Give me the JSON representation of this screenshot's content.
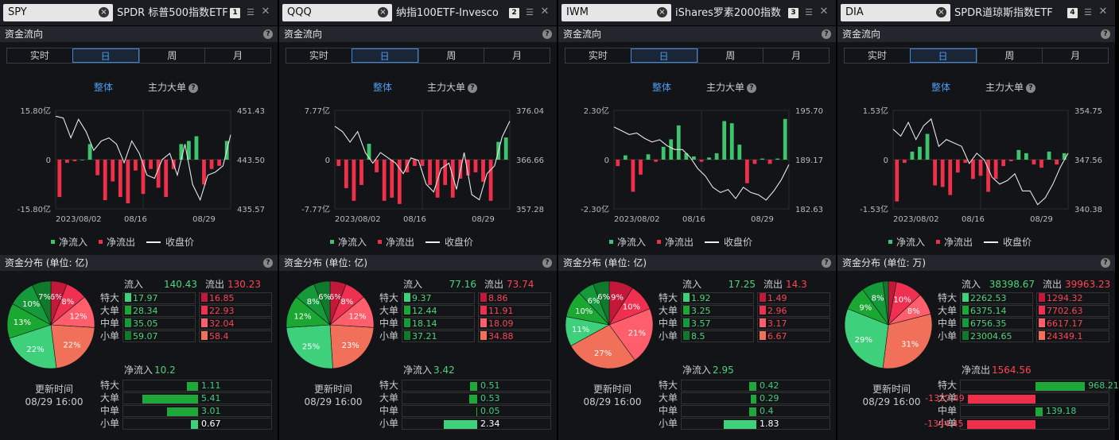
{
  "ui": {
    "section_flow": "资金流向",
    "section_dist_prefix": "资金分布 (单位: ",
    "section_dist_suffix": ")",
    "periods": [
      "实时",
      "日",
      "周",
      "月"
    ],
    "active_period": 1,
    "mode_overall": "整体",
    "mode_main": "主力大单",
    "legend_in": "净流入",
    "legend_out": "净流出",
    "legend_close": "收盘价",
    "inflow_label": "流入",
    "outflow_label": "流出",
    "size_labels": [
      "特大",
      "大单",
      "中单",
      "小单"
    ],
    "update_label": "更新时间",
    "update_time": "08/29 16:00",
    "help": "?",
    "colors": {
      "up": "#3ec46d",
      "down": "#f0304a",
      "pie": [
        "#c2183a",
        "#f03050",
        "#ff5e6c",
        "#f0705a",
        "#3ed07a",
        "#1aa832",
        "#149a3a",
        "#0f7a2c"
      ]
    }
  },
  "panels": [
    {
      "symbol": "SPY",
      "title": "SPDR 标普500指数ETF",
      "num": "1",
      "unit": "亿",
      "chart_data": {
        "type": "bar",
        "dates": [
          "2023/08/02",
          "08/16",
          "08/29"
        ],
        "date_ticks": [
          0,
          10,
          19
        ],
        "y_left": [
          "15.80亿",
          "0",
          "-15.80亿"
        ],
        "y_right": [
          "451.43",
          "443.50",
          "435.57"
        ],
        "y_lim": [
          -15.8,
          15.8
        ],
        "price_lim": [
          435.57,
          451.43
        ],
        "flows": [
          -12,
          -1,
          -0.5,
          0,
          5,
          -5,
          -13,
          -7,
          -12,
          -14,
          -3.5,
          -11,
          -3,
          -9,
          -12,
          -3,
          5,
          6,
          7.5,
          -8,
          -3,
          -2,
          6
        ],
        "close": [
          450.5,
          450.2,
          447,
          450,
          448,
          445,
          446.5,
          447,
          446,
          443,
          446.5,
          444.5,
          441,
          440.5,
          443.5,
          444.5,
          441,
          446,
          439.5,
          437,
          441,
          441.5,
          442.5,
          447.5
        ]
      },
      "inflow": "140.43",
      "outflow": "130.23",
      "in_values": [
        "17.97",
        "28.34",
        "35.05",
        "59.07"
      ],
      "out_values": [
        "16.85",
        "22.93",
        "32.04",
        "58.4"
      ],
      "pie": [
        6,
        8,
        12,
        22,
        22,
        13,
        10,
        7
      ],
      "net_label": "净流入",
      "net_value": "10.2",
      "net_positive": true,
      "net": [
        1.11,
        5.41,
        3.01,
        0.67
      ],
      "net_text": [
        "1.11",
        "5.41",
        "3.01",
        "0.67"
      ],
      "net_scale": 7
    },
    {
      "symbol": "QQQ",
      "title": "纳指100ETF-Invesco",
      "num": "2",
      "unit": "亿",
      "chart_data": {
        "type": "bar",
        "dates": [
          "2023/08/02",
          "08/16",
          "08/29"
        ],
        "date_ticks": [
          0,
          10,
          19
        ],
        "y_left": [
          "7.77亿",
          "0",
          "-7.77亿"
        ],
        "y_right": [
          "376.04",
          "366.66",
          "357.28"
        ],
        "y_lim": [
          -7.77,
          7.77
        ],
        "price_lim": [
          357.28,
          376.04
        ],
        "flows": [
          -1,
          -4.5,
          -6.5,
          -4,
          2.5,
          -2,
          -6.5,
          -6,
          -7,
          -2,
          -1,
          -1,
          -4,
          -6,
          -4,
          -6,
          -3,
          -2.5,
          -2,
          -3.5,
          -6.5,
          2.8,
          3.5
        ],
        "close": [
          373,
          372,
          370,
          372,
          368,
          366,
          368,
          367,
          366,
          364,
          367,
          366.5,
          362,
          360.5,
          365,
          366,
          361,
          368,
          360,
          359,
          364,
          365.5,
          371,
          374
        ]
      },
      "inflow": "77.16",
      "outflow": "73.74",
      "in_values": [
        "9.37",
        "12.44",
        "18.14",
        "37.21"
      ],
      "out_values": [
        "8.86",
        "11.91",
        "18.09",
        "34.88"
      ],
      "pie": [
        6,
        8,
        12,
        23,
        25,
        12,
        8,
        6
      ],
      "net_label": "净流入",
      "net_value": "3.42",
      "net_positive": true,
      "net": [
        0.51,
        0.53,
        0.05,
        2.34
      ],
      "net_text": [
        "0.51",
        "0.53",
        "0.05",
        "2.34"
      ],
      "net_scale": 5
    },
    {
      "symbol": "IWM",
      "title": "iShares罗素2000指数",
      "num": "3",
      "unit": "亿",
      "chart_data": {
        "type": "bar",
        "dates": [
          "2023/08/02",
          "08/16",
          "08/29"
        ],
        "date_ticks": [
          0,
          10,
          19
        ],
        "y_left": [
          "2.30亿",
          "0",
          "-2.30亿"
        ],
        "y_right": [
          "195.70",
          "189.17",
          "182.63"
        ],
        "y_lim": [
          -2.3,
          2.3
        ],
        "price_lim": [
          182.63,
          195.7
        ],
        "flows": [
          -0.3,
          0.2,
          -1.5,
          -0.7,
          0.25,
          -0.1,
          0.6,
          0.95,
          1.6,
          0.3,
          0.15,
          -0.1,
          0.1,
          0.3,
          1.8,
          1.7,
          0.7,
          -1.1,
          -0.2,
          0.05,
          -0.2,
          0.05,
          1.9
        ],
        "close": [
          193.5,
          193,
          192.5,
          192.7,
          192,
          191.5,
          191.8,
          191,
          190.5,
          190.5,
          189.5,
          188,
          187,
          185.5,
          184.8,
          185.2,
          184,
          185.5,
          184.8,
          184.5,
          183.8,
          185,
          186.5,
          188.5
        ]
      },
      "inflow": "17.25",
      "outflow": "14.3",
      "in_values": [
        "1.92",
        "3.25",
        "3.57",
        "8.5"
      ],
      "out_values": [
        "1.49",
        "2.96",
        "3.17",
        "6.67"
      ],
      "pie": [
        9,
        10,
        21,
        27,
        11,
        10,
        6,
        6
      ],
      "net_label": "净流入",
      "net_value": "2.95",
      "net_positive": true,
      "net": [
        0.42,
        0.29,
        0.4,
        1.83
      ],
      "net_text": [
        "0.42",
        "0.29",
        "0.4",
        "1.83"
      ],
      "net_scale": 4
    },
    {
      "symbol": "DIA",
      "title": "SPDR道琼斯指数ETF",
      "num": "4",
      "unit": "万",
      "chart_data": {
        "type": "bar",
        "dates": [
          "2023/08/02",
          "08/16",
          "08/29"
        ],
        "date_ticks": [
          0,
          10,
          19
        ],
        "y_left": [
          "1.53亿",
          "0",
          "-1.53亿"
        ],
        "y_right": [
          "354.75",
          "347.56",
          "340.38"
        ],
        "y_lim": [
          -1.53,
          1.53
        ],
        "price_lim": [
          340.38,
          354.75
        ],
        "flows": [
          -1.3,
          -0.1,
          0.25,
          0.4,
          0.8,
          -0.8,
          -0.85,
          -1.1,
          -0.4,
          -0.1,
          -0.6,
          -0.5,
          -1.0,
          -0.6,
          -0.2,
          -0.05,
          0.3,
          0.2,
          -0.15,
          -0.25,
          0.25,
          -0.15,
          0.2
        ],
        "close": [
          352,
          351,
          353,
          350.5,
          352.5,
          353.5,
          349.5,
          350.5,
          350,
          349.5,
          347,
          348.5,
          347.5,
          345,
          344,
          344.5,
          345.5,
          343,
          343,
          341,
          342,
          344,
          346.5,
          348.5
        ]
      },
      "inflow": "38398.67",
      "outflow": "39963.23",
      "in_values": [
        "2262.53",
        "6375.14",
        "6756.35",
        "23004.65"
      ],
      "out_values": [
        "1294.32",
        "7702.63",
        "6617.17",
        "24349.1"
      ],
      "pie": [
        3,
        10,
        8,
        31,
        29,
        9,
        8,
        2
      ],
      "net_label": "净流出",
      "net_value": "1564.56",
      "net_positive": false,
      "net": [
        968.21,
        -1327.49,
        139.18,
        -1344.45
      ],
      "net_text": [
        "968.21",
        "-1327.49",
        "139.18",
        "-1344.45"
      ],
      "net_scale": 1400
    }
  ]
}
